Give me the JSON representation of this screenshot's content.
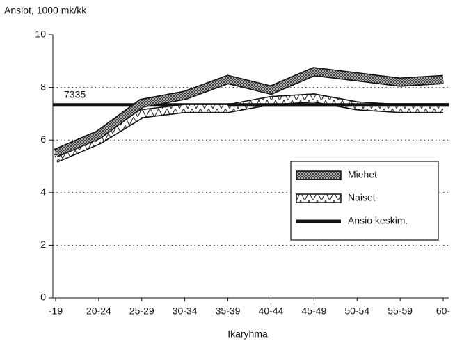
{
  "chart_data": {
    "type": "line",
    "title": "Ansiot, 1000 mk/kk",
    "x_label": "Ikäryhmä",
    "categories": [
      "-19",
      "20-24",
      "25-29",
      "30-34",
      "35-39",
      "40-44",
      "45-49",
      "50-54",
      "55-59",
      "60-"
    ],
    "series": [
      {
        "name": "Miehet",
        "color": "#555555",
        "values": [
          5.5,
          6.2,
          7.4,
          7.7,
          8.3,
          7.9,
          8.6,
          8.4,
          8.2,
          8.3
        ]
      },
      {
        "name": "Naiset",
        "color": "#ffffff",
        "values": [
          5.3,
          6.0,
          7.0,
          7.2,
          7.2,
          7.5,
          7.6,
          7.3,
          7.2,
          7.2
        ]
      }
    ],
    "reference_line": {
      "name": "Ansio keskim.",
      "value": 7.335,
      "label": "7335",
      "color": "#111111"
    },
    "ylim": [
      0,
      10
    ],
    "yticks": [
      0,
      2,
      4,
      6,
      8,
      10
    ],
    "grid": true,
    "legend": "right"
  }
}
